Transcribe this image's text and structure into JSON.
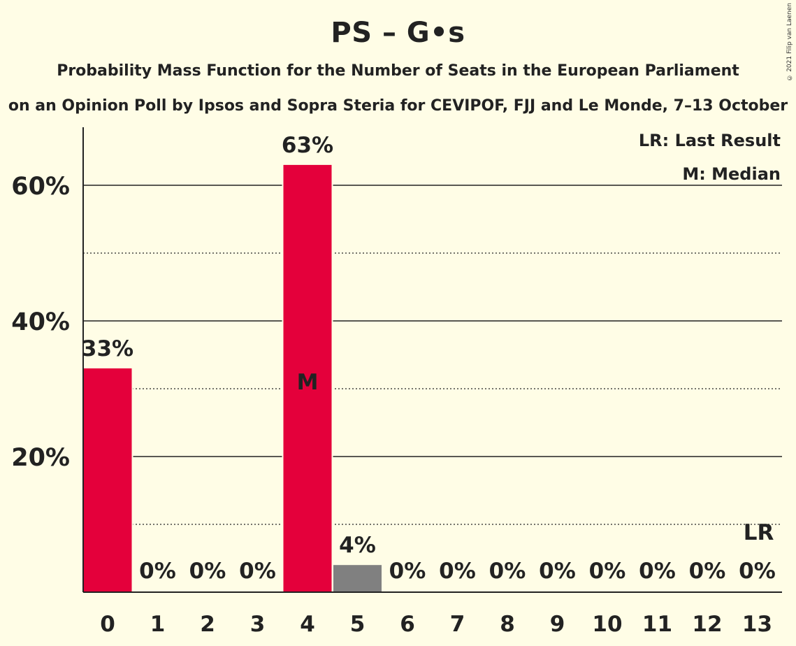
{
  "title": "PS – G•s",
  "subtitle": "Probability Mass Function for the Number of Seats in the European Parliament",
  "subtitle2": "on an Opinion Poll by Ipsos and Sopra Steria for CEVIPOF, FJJ and Le Monde, 7–13 October",
  "copyright": "© 2021 Filip van Laenen",
  "legend": {
    "last_result": "LR: Last Result",
    "median": "M: Median"
  },
  "colors": {
    "bar": "#E4003B",
    "bar_outside": "#808080",
    "background": "#FFFDE6"
  },
  "chart_data": {
    "type": "bar",
    "categories": [
      "0",
      "1",
      "2",
      "3",
      "4",
      "5",
      "6",
      "7",
      "8",
      "9",
      "10",
      "11",
      "12",
      "13"
    ],
    "values": [
      33,
      0,
      0,
      0,
      63,
      4,
      0,
      0,
      0,
      0,
      0,
      0,
      0,
      0
    ],
    "value_labels": [
      "33%",
      "0%",
      "0%",
      "0%",
      "63%",
      "4%",
      "0%",
      "0%",
      "0%",
      "0%",
      "0%",
      "0%",
      "0%",
      "0%"
    ],
    "bar_colors": [
      "bar",
      "bar",
      "bar",
      "bar",
      "bar",
      "bar_outside",
      "bar",
      "bar",
      "bar",
      "bar",
      "bar",
      "bar",
      "bar",
      "bar"
    ],
    "yticks": [
      20,
      40,
      60
    ],
    "ytick_labels": [
      "20%",
      "40%",
      "60%"
    ],
    "minor_gridlines": [
      10,
      30,
      50
    ],
    "ylim": [
      0,
      68.5
    ],
    "median_index": 4,
    "median_label": "M",
    "last_result_index": 13,
    "last_result_label": "LR",
    "grid": true,
    "legend_position": "top-right"
  }
}
